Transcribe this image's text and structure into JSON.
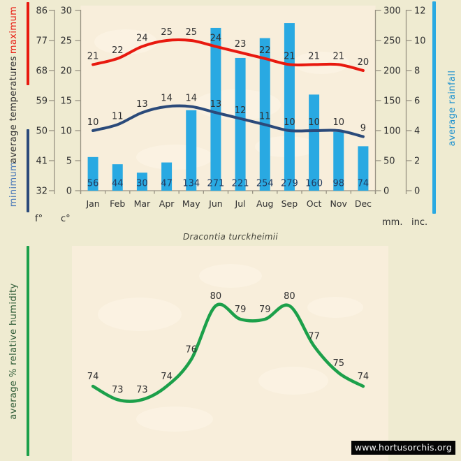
{
  "species_title": "Dracontia turckheimii",
  "watermark": "www.hortusorchis.org",
  "chart_data": [
    {
      "type": "line",
      "title": "average temperatures",
      "categories": [
        "Jan",
        "Feb",
        "Mar",
        "Apr",
        "May",
        "Jun",
        "Jul",
        "Aug",
        "Sep",
        "Oct",
        "Nov",
        "Dec"
      ],
      "series": [
        {
          "name": "maximum",
          "unit": "c°",
          "color": "#e8190f",
          "values": [
            21,
            22,
            24,
            25,
            25,
            24,
            23,
            22,
            21,
            21,
            21,
            20
          ]
        },
        {
          "name": "minimum",
          "unit": "c°",
          "color": "#2b4a7a",
          "values": [
            10,
            11,
            13,
            14,
            14,
            13,
            12,
            11,
            10,
            10,
            10,
            9
          ]
        }
      ],
      "axes": {
        "left_outer": {
          "label": "f°",
          "ticks": [
            86,
            77,
            68,
            59,
            50,
            41,
            32
          ]
        },
        "left_inner": {
          "label": "c°",
          "ticks": [
            30,
            25,
            20,
            15,
            10,
            5,
            0
          ],
          "range": [
            0,
            30
          ]
        }
      },
      "data_labels": true,
      "grid": false,
      "legend_position": "left-rotated"
    },
    {
      "type": "bar",
      "title": "average rainfall",
      "categories": [
        "Jan",
        "Feb",
        "Mar",
        "Apr",
        "May",
        "Jun",
        "Jul",
        "Aug",
        "Sep",
        "Oct",
        "Nov",
        "Dec"
      ],
      "values": [
        56,
        44,
        30,
        47,
        134,
        271,
        221,
        254,
        279,
        160,
        98,
        74
      ],
      "color": "#29a9e2",
      "axes": {
        "right_inner": {
          "label": "mm.",
          "ticks": [
            300,
            250,
            200,
            150,
            100,
            50,
            0
          ],
          "range": [
            0,
            300
          ]
        },
        "right_outer": {
          "label": "inc.",
          "ticks": [
            12,
            10,
            8,
            6,
            4,
            2,
            0
          ],
          "range": [
            0,
            12
          ]
        }
      },
      "data_labels": true,
      "grid": false,
      "legend_position": "right-rotated"
    },
    {
      "type": "line",
      "title": "average % relative humidity",
      "categories": [
        "Jan",
        "Feb",
        "Mar",
        "Apr",
        "May",
        "Jun",
        "Jul",
        "Aug",
        "Sep",
        "Oct",
        "Nov",
        "Dec"
      ],
      "values": [
        74,
        73,
        73,
        74,
        76,
        80,
        79,
        79,
        80,
        77,
        75,
        74
      ],
      "color": "#1ca04a",
      "data_labels": true,
      "axis_visible": false,
      "grid": false,
      "legend_position": "left-rotated"
    }
  ]
}
